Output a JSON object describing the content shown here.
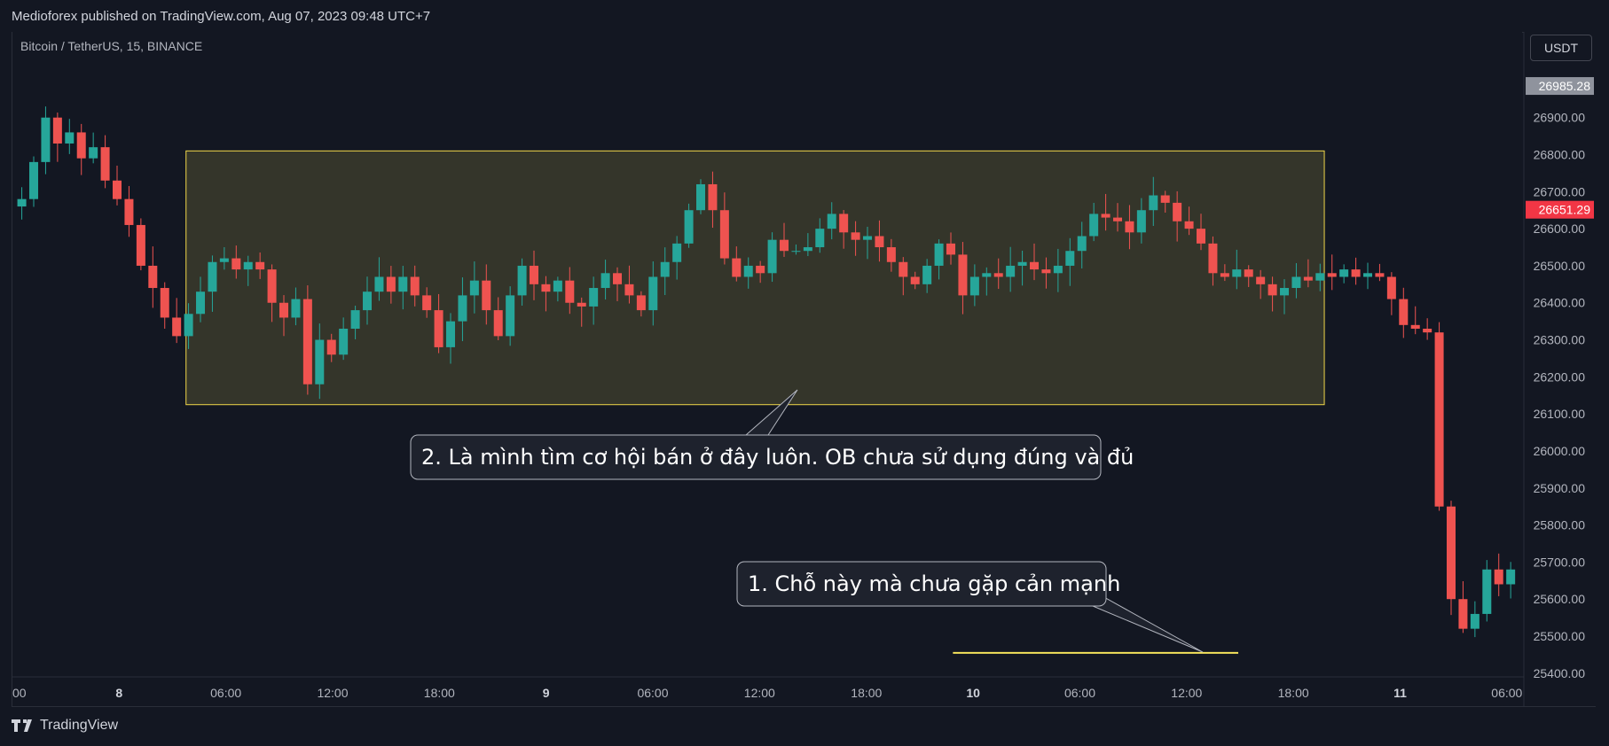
{
  "header": {
    "published": "Medioforex published on TradingView.com, Aug 07, 2023 09:48 UTC+7"
  },
  "symbol": "Bitcoin / TetherUS, 15, BINANCE",
  "currency_button": "USDT",
  "footer": {
    "brand": "TradingView",
    "logo_icon": "tradingview-logo-icon"
  },
  "colors": {
    "background": "#131722",
    "up": "#26a69a",
    "down": "#ef5350",
    "zone_fill": "#3b3b2b",
    "zone_border": "#f0d64a",
    "support_line": "#f5e35c",
    "price_tag_gray": "#8f939d",
    "price_tag_red": "#f23645"
  },
  "chart_data": {
    "type": "candlestick",
    "y_ticks": [
      "25400.00",
      "25500.00",
      "25600.00",
      "25700.00",
      "25800.00",
      "25900.00",
      "26000.00",
      "26100.00",
      "26200.00",
      "26300.00",
      "26400.00",
      "26500.00",
      "26600.00",
      "26700.00",
      "26800.00",
      "26900.00"
    ],
    "ylim": [
      25390,
      27050
    ],
    "x_ticks": [
      {
        "label": "00",
        "pos": 0.0
      },
      {
        "label": "8",
        "pos": 0.0707
      },
      {
        "label": "06:00",
        "pos": 0.1414
      },
      {
        "label": "12:00",
        "pos": 0.2121
      },
      {
        "label": "18:00",
        "pos": 0.2828
      },
      {
        "label": "9",
        "pos": 0.3535
      },
      {
        "label": "06:00",
        "pos": 0.4242
      },
      {
        "label": "12:00",
        "pos": 0.4949
      },
      {
        "label": "18:00",
        "pos": 0.5657
      },
      {
        "label": "10",
        "pos": 0.6364
      },
      {
        "label": "06:00",
        "pos": 0.7071
      },
      {
        "label": "12:00",
        "pos": 0.7778
      },
      {
        "label": "18:00",
        "pos": 0.8485
      },
      {
        "label": "11",
        "pos": 0.9192
      },
      {
        "label": "06:00",
        "pos": 0.9899
      }
    ],
    "bold_x_labels": [
      "8",
      "9",
      "10",
      "11"
    ],
    "last_price_tag": "26985.28",
    "current_price_tag": "26651.29",
    "close_trajectory": [
      [
        0,
        26680
      ],
      [
        1,
        26780
      ],
      [
        2,
        26900
      ],
      [
        3,
        26830
      ],
      [
        4,
        26860
      ],
      [
        5,
        26790
      ],
      [
        6,
        26820
      ],
      [
        7,
        26730
      ],
      [
        8,
        26680
      ],
      [
        9,
        26610
      ],
      [
        10,
        26500
      ],
      [
        11,
        26440
      ],
      [
        12,
        26360
      ],
      [
        13,
        26310
      ],
      [
        14,
        26370
      ],
      [
        15,
        26430
      ],
      [
        16,
        26510
      ],
      [
        17,
        26520
      ],
      [
        18,
        26490
      ],
      [
        19,
        26510
      ],
      [
        20,
        26490
      ],
      [
        21,
        26400
      ],
      [
        22,
        26360
      ],
      [
        23,
        26410
      ],
      [
        24,
        26180
      ],
      [
        25,
        26300
      ],
      [
        26,
        26260
      ],
      [
        27,
        26330
      ],
      [
        28,
        26380
      ],
      [
        29,
        26430
      ],
      [
        30,
        26470
      ],
      [
        31,
        26430
      ],
      [
        32,
        26470
      ],
      [
        33,
        26420
      ],
      [
        34,
        26380
      ],
      [
        35,
        26280
      ],
      [
        36,
        26350
      ],
      [
        37,
        26420
      ],
      [
        38,
        26460
      ],
      [
        39,
        26380
      ],
      [
        40,
        26310
      ],
      [
        41,
        26420
      ],
      [
        42,
        26500
      ],
      [
        43,
        26450
      ],
      [
        44,
        26430
      ],
      [
        45,
        26460
      ],
      [
        46,
        26400
      ],
      [
        47,
        26390
      ],
      [
        48,
        26440
      ],
      [
        49,
        26480
      ],
      [
        50,
        26450
      ],
      [
        51,
        26420
      ],
      [
        52,
        26380
      ],
      [
        53,
        26470
      ],
      [
        54,
        26510
      ],
      [
        55,
        26560
      ],
      [
        56,
        26650
      ],
      [
        57,
        26720
      ],
      [
        58,
        26650
      ],
      [
        59,
        26520
      ],
      [
        60,
        26470
      ],
      [
        61,
        26500
      ],
      [
        62,
        26480
      ],
      [
        63,
        26570
      ],
      [
        64,
        26540
      ],
      [
        65,
        26540
      ],
      [
        66,
        26550
      ],
      [
        67,
        26600
      ],
      [
        68,
        26640
      ],
      [
        69,
        26590
      ],
      [
        70,
        26570
      ],
      [
        71,
        26580
      ],
      [
        72,
        26550
      ],
      [
        73,
        26510
      ],
      [
        74,
        26470
      ],
      [
        75,
        26450
      ],
      [
        76,
        26500
      ],
      [
        77,
        26560
      ],
      [
        78,
        26530
      ],
      [
        79,
        26420
      ],
      [
        80,
        26470
      ],
      [
        81,
        26480
      ],
      [
        82,
        26470
      ],
      [
        83,
        26500
      ],
      [
        84,
        26510
      ],
      [
        85,
        26490
      ],
      [
        86,
        26480
      ],
      [
        87,
        26500
      ],
      [
        88,
        26540
      ],
      [
        89,
        26580
      ],
      [
        90,
        26640
      ],
      [
        91,
        26630
      ],
      [
        92,
        26620
      ],
      [
        93,
        26590
      ],
      [
        94,
        26650
      ],
      [
        95,
        26690
      ],
      [
        96,
        26670
      ],
      [
        97,
        26620
      ],
      [
        98,
        26600
      ],
      [
        99,
        26560
      ],
      [
        100,
        26480
      ],
      [
        101,
        26470
      ],
      [
        102,
        26490
      ],
      [
        103,
        26470
      ],
      [
        104,
        26450
      ],
      [
        105,
        26420
      ],
      [
        106,
        26440
      ],
      [
        107,
        26470
      ],
      [
        108,
        26460
      ],
      [
        109,
        26480
      ],
      [
        110,
        26470
      ],
      [
        111,
        26490
      ],
      [
        112,
        26470
      ],
      [
        113,
        26480
      ],
      [
        114,
        26470
      ],
      [
        115,
        26410
      ],
      [
        116,
        26340
      ],
      [
        117,
        26330
      ],
      [
        118,
        26320
      ],
      [
        119,
        25850
      ],
      [
        120,
        25600
      ],
      [
        121,
        25520
      ],
      [
        122,
        25560
      ],
      [
        123,
        25680
      ],
      [
        124,
        25640
      ],
      [
        125,
        25680
      ]
    ],
    "candle_count": 126,
    "zone": {
      "y_top": 26810,
      "y_bottom": 26125,
      "x_from": 0.115,
      "x_to": 0.869
    },
    "support_line": {
      "y": 25455,
      "x_from": 0.623,
      "x_to": 0.812
    },
    "annotations": [
      {
        "text": "2. Là mình tìm cơ hội bán ở đây luôn. OB chưa sử dụng đúng và đủ"
      },
      {
        "text": "1. Chỗ này mà chưa gặp cản mạnh"
      }
    ]
  }
}
